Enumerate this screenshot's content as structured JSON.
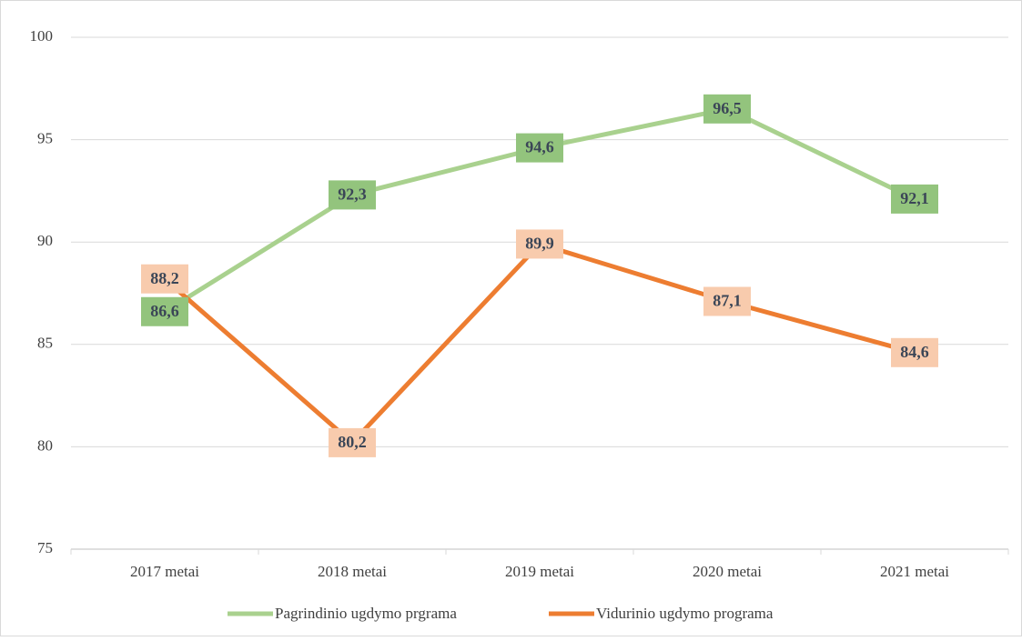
{
  "chart_data": {
    "type": "line",
    "categories": [
      "2017 metai",
      "2018 metai",
      "2019 metai",
      "2020 metai",
      "2021 metai"
    ],
    "series": [
      {
        "name": "Pagrindinio ugdymo prgrama",
        "color": "#a9d18e",
        "label_color": "#93c47d",
        "values": [
          86.6,
          92.3,
          94.6,
          96.5,
          92.1
        ],
        "value_labels": [
          "86,6",
          "92,3",
          "94,6",
          "96,5",
          "92,1"
        ]
      },
      {
        "name": "Vidurinio ugdymo programa",
        "color": "#ed7d31",
        "label_color": "#f8cbad",
        "values": [
          88.2,
          80.2,
          89.9,
          87.1,
          84.6
        ],
        "value_labels": [
          "88,2",
          "80,2",
          "89,9",
          "87,1",
          "84,6"
        ]
      }
    ],
    "ylim": [
      75,
      100
    ],
    "yticks": [
      75,
      80,
      85,
      90,
      95,
      100
    ],
    "grid": true,
    "legend": "bottom"
  }
}
